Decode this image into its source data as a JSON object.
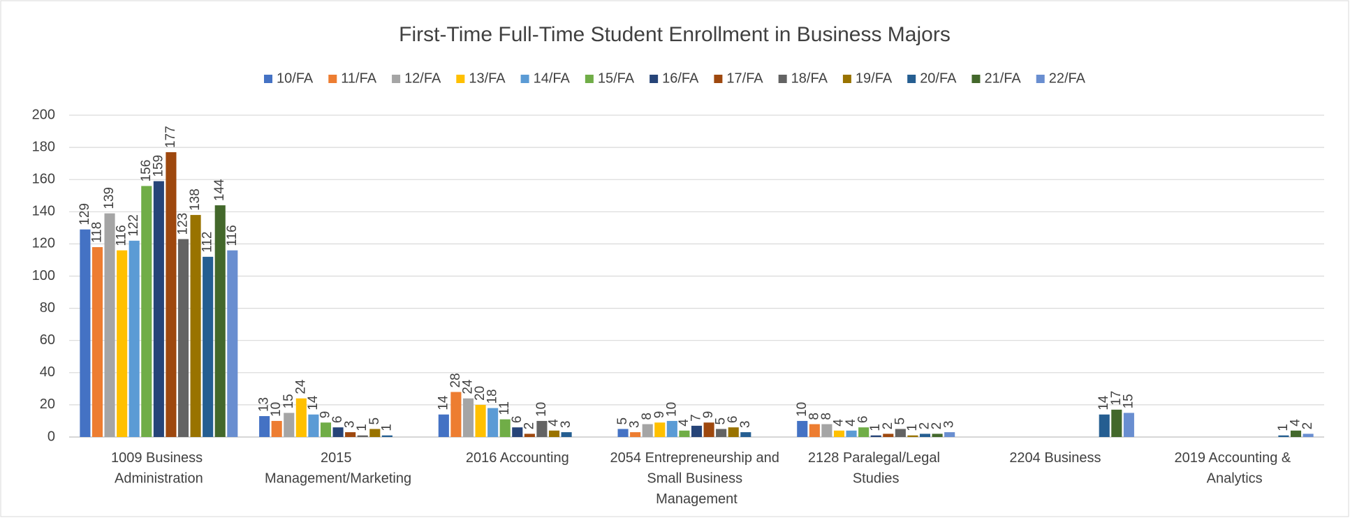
{
  "chart_data": {
    "type": "bar",
    "title": "First-Time Full-Time Student Enrollment in Business Majors",
    "categories": [
      "1009 Business Administration",
      "2015 Management/Marketing",
      "2016 Accounting",
      "2054 Entrepreneurship and Small Business Management",
      "2128 Paralegal/Legal Studies",
      "2204 Business",
      "2019 Accounting & Analytics"
    ],
    "series": [
      {
        "name": "10/FA",
        "color": "#4472c4",
        "values": [
          129,
          13,
          14,
          5,
          10,
          null,
          null
        ]
      },
      {
        "name": "11/FA",
        "color": "#ed7d31",
        "values": [
          118,
          10,
          28,
          3,
          8,
          null,
          null
        ]
      },
      {
        "name": "12/FA",
        "color": "#a5a5a5",
        "values": [
          139,
          15,
          24,
          8,
          8,
          null,
          null
        ]
      },
      {
        "name": "13/FA",
        "color": "#ffc000",
        "values": [
          116,
          24,
          20,
          9,
          4,
          null,
          null
        ]
      },
      {
        "name": "14/FA",
        "color": "#5b9bd5",
        "values": [
          122,
          14,
          18,
          10,
          4,
          null,
          null
        ]
      },
      {
        "name": "15/FA",
        "color": "#70ad47",
        "values": [
          156,
          9,
          11,
          4,
          6,
          null,
          null
        ]
      },
      {
        "name": "16/FA",
        "color": "#264478",
        "values": [
          159,
          6,
          6,
          7,
          1,
          null,
          null
        ]
      },
      {
        "name": "17/FA",
        "color": "#9e480e",
        "values": [
          177,
          3,
          2,
          9,
          2,
          null,
          null
        ]
      },
      {
        "name": "18/FA",
        "color": "#636363",
        "values": [
          123,
          1,
          10,
          5,
          5,
          null,
          null
        ]
      },
      {
        "name": "19/FA",
        "color": "#997300",
        "values": [
          138,
          5,
          4,
          6,
          1,
          null,
          null
        ]
      },
      {
        "name": "20/FA",
        "color": "#255e91",
        "values": [
          112,
          1,
          3,
          3,
          2,
          14,
          1
        ]
      },
      {
        "name": "21/FA",
        "color": "#43682b",
        "values": [
          144,
          null,
          null,
          null,
          2,
          17,
          4
        ]
      },
      {
        "name": "22/FA",
        "color": "#698ed0",
        "values": [
          116,
          null,
          null,
          null,
          3,
          15,
          2
        ]
      }
    ],
    "ylim": [
      0,
      200
    ],
    "yticks": [
      0,
      20,
      40,
      60,
      80,
      100,
      120,
      140,
      160,
      180,
      200
    ],
    "grid": true,
    "legend": "top",
    "data_labels": true
  }
}
